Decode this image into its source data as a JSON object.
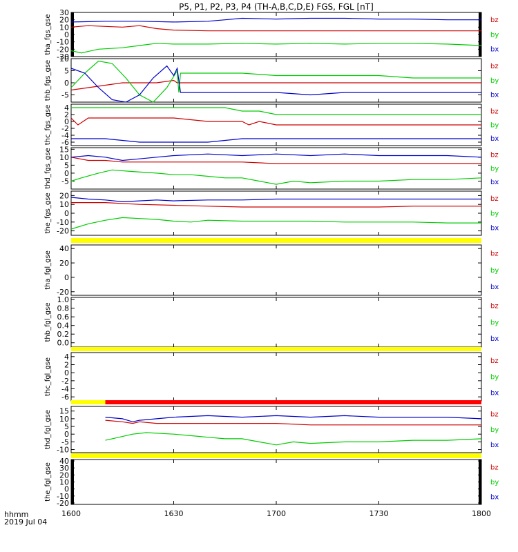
{
  "title": "P5, P1, P2, P3, P4 (TH-A,B,C,D,E) FGS, FGL [nT]",
  "colors": {
    "bz": "#cc0000",
    "by": "#00cc00",
    "bx": "#0000cc",
    "bar_yellow": "#ffff00",
    "bar_red": "#ff0000",
    "edge": "#000000"
  },
  "legend": [
    "bz",
    "by",
    "bx"
  ],
  "x_axis": {
    "ticks": [
      "1600",
      "1630",
      "1700",
      "1730",
      "1800"
    ],
    "corner_label": "hhmm",
    "date_label": "2019 Jul 04"
  },
  "chart_data": [
    {
      "type": "line",
      "ylabel": "tha_fgs_gse",
      "ylim": [
        -30,
        30
      ],
      "yticks": [
        -30,
        -20,
        -10,
        0,
        10,
        20,
        30
      ],
      "x_range": [
        "16:00",
        "18:00"
      ],
      "series": [
        {
          "name": "bz",
          "x": [
            0,
            5,
            10,
            15,
            20,
            25,
            30,
            40,
            50,
            60,
            70,
            80,
            90,
            100,
            110,
            120
          ],
          "y": [
            10,
            12,
            11,
            10,
            12,
            8,
            6,
            5,
            5,
            5,
            5,
            5,
            5,
            5,
            5,
            5
          ]
        },
        {
          "name": "by",
          "x": [
            0,
            3,
            8,
            15,
            20,
            25,
            30,
            40,
            50,
            60,
            70,
            80,
            90,
            100,
            110,
            120
          ],
          "y": [
            -22,
            -25,
            -20,
            -18,
            -15,
            -12,
            -13,
            -13,
            -12,
            -13,
            -12,
            -13,
            -12,
            -12,
            -13,
            -15
          ]
        },
        {
          "name": "bx",
          "x": [
            0,
            10,
            20,
            30,
            40,
            45,
            50,
            60,
            70,
            80,
            90,
            100,
            110,
            120
          ],
          "y": [
            17,
            18,
            18,
            17,
            18,
            20,
            22,
            21,
            22,
            22,
            21,
            21,
            20,
            20
          ]
        }
      ]
    },
    {
      "type": "line",
      "ylabel": "thb_fgs_gse",
      "ylim": [
        -8,
        10
      ],
      "yticks": [
        -5,
        0,
        5,
        10
      ],
      "series": [
        {
          "name": "bz",
          "x": [
            0,
            5,
            10,
            15,
            20,
            25,
            30,
            31,
            40,
            50,
            60,
            70,
            80,
            90,
            100,
            110,
            120
          ],
          "y": [
            -3,
            -2,
            -1,
            0,
            0,
            0,
            1,
            0,
            0,
            0,
            0,
            0,
            0,
            0,
            0,
            0,
            0
          ]
        },
        {
          "name": "by",
          "x": [
            0,
            4,
            8,
            12,
            16,
            20,
            24,
            28,
            31,
            31.5,
            32,
            40,
            50,
            60,
            70,
            80,
            90,
            100,
            110,
            120
          ],
          "y": [
            -2,
            4,
            9,
            8,
            2,
            -5,
            -8,
            -2,
            5,
            -4,
            4,
            4,
            4,
            3,
            3,
            3,
            3,
            2,
            2,
            2
          ]
        },
        {
          "name": "bx",
          "x": [
            0,
            4,
            8,
            12,
            16,
            20,
            24,
            28,
            30,
            31,
            32,
            40,
            50,
            60,
            70,
            80,
            90,
            100,
            110,
            120
          ],
          "y": [
            6,
            4,
            -2,
            -7,
            -9,
            -5,
            2,
            7,
            3,
            6,
            -4,
            -4,
            -4,
            -4,
            -5,
            -4,
            -4,
            -4,
            -4,
            -4
          ]
        }
      ]
    },
    {
      "type": "line",
      "ylabel": "thc_fgs_gse",
      "ylim": [
        -7,
        5
      ],
      "yticks": [
        -6,
        -4,
        -2,
        0,
        2,
        4
      ],
      "series": [
        {
          "name": "bz",
          "x": [
            0,
            2,
            5,
            10,
            20,
            30,
            40,
            45,
            50,
            52,
            55,
            60,
            70,
            80,
            90,
            100,
            110,
            120
          ],
          "y": [
            1,
            -1,
            1,
            1,
            1,
            1,
            0,
            0,
            0,
            -1,
            0,
            -1,
            -1,
            -1,
            -1,
            -1,
            -1,
            -1
          ]
        },
        {
          "name": "by",
          "x": [
            0,
            10,
            20,
            30,
            40,
            45,
            50,
            55,
            60,
            70,
            80,
            90,
            100,
            110,
            120
          ],
          "y": [
            4,
            4,
            4,
            4,
            4,
            4,
            3,
            3,
            2,
            2,
            2,
            2,
            2,
            2,
            2
          ]
        },
        {
          "name": "bx",
          "x": [
            0,
            10,
            20,
            30,
            40,
            50,
            60,
            70,
            80,
            90,
            100,
            110,
            120
          ],
          "y": [
            -5,
            -5,
            -6,
            -6,
            -6,
            -5,
            -5,
            -5,
            -5,
            -5,
            -5,
            -5,
            -5
          ]
        }
      ]
    },
    {
      "type": "line",
      "ylabel": "thd_fgs_gse",
      "ylim": [
        -10,
        16
      ],
      "yticks": [
        -5,
        0,
        5,
        10,
        15
      ],
      "series": [
        {
          "name": "bz",
          "x": [
            0,
            5,
            10,
            15,
            20,
            30,
            40,
            50,
            60,
            70,
            80,
            90,
            100,
            110,
            120
          ],
          "y": [
            10,
            8,
            8,
            7,
            7,
            7,
            7,
            7,
            6,
            6,
            6,
            6,
            6,
            6,
            6
          ]
        },
        {
          "name": "by",
          "x": [
            0,
            3,
            8,
            12,
            18,
            25,
            30,
            35,
            40,
            45,
            50,
            55,
            60,
            65,
            70,
            80,
            90,
            100,
            110,
            120
          ],
          "y": [
            -5,
            -3,
            0,
            2,
            1,
            0,
            -1,
            -1,
            -2,
            -3,
            -3,
            -5,
            -7,
            -5,
            -6,
            -5,
            -5,
            -4,
            -4,
            -3
          ]
        },
        {
          "name": "bx",
          "x": [
            0,
            5,
            10,
            15,
            20,
            25,
            30,
            40,
            50,
            60,
            70,
            80,
            90,
            100,
            110,
            120
          ],
          "y": [
            10,
            11,
            10,
            8,
            9,
            10,
            11,
            12,
            11,
            12,
            11,
            12,
            11,
            11,
            11,
            10
          ]
        }
      ]
    },
    {
      "type": "line",
      "ylabel": "the_fgs_gse",
      "ylim": [
        -25,
        25
      ],
      "yticks": [
        -20,
        -10,
        0,
        10,
        20
      ],
      "series": [
        {
          "name": "bz",
          "x": [
            0,
            10,
            20,
            30,
            40,
            50,
            60,
            70,
            80,
            90,
            100,
            110,
            120
          ],
          "y": [
            12,
            12,
            10,
            9,
            8,
            7,
            7,
            7,
            7,
            7,
            8,
            8,
            8
          ]
        },
        {
          "name": "by",
          "x": [
            0,
            5,
            10,
            15,
            20,
            25,
            30,
            35,
            40,
            50,
            60,
            70,
            80,
            90,
            100,
            110,
            120
          ],
          "y": [
            -18,
            -12,
            -8,
            -5,
            -6,
            -7,
            -9,
            -10,
            -8,
            -9,
            -9,
            -9,
            -10,
            -10,
            -10,
            -11,
            -11
          ]
        },
        {
          "name": "bx",
          "x": [
            0,
            5,
            10,
            15,
            20,
            25,
            30,
            40,
            50,
            60,
            70,
            80,
            90,
            100,
            110,
            120
          ],
          "y": [
            18,
            16,
            15,
            13,
            14,
            15,
            14,
            15,
            15,
            16,
            16,
            16,
            16,
            16,
            16,
            16
          ]
        }
      ]
    },
    {
      "type": "line",
      "ylabel": "tha_fgl_gse",
      "ylim": [
        -25,
        45
      ],
      "yticks": [
        -20,
        0,
        20,
        40
      ],
      "series": []
    },
    {
      "type": "line",
      "ylabel": "thb_fgl_gse",
      "ylim": [
        -0.1,
        1.05
      ],
      "yticks": [
        0.0,
        0.2,
        0.4,
        0.6,
        0.8,
        1.0
      ],
      "series": []
    },
    {
      "type": "line",
      "ylabel": "thc_fgl_gse",
      "ylim": [
        -7,
        5
      ],
      "yticks": [
        -6,
        -4,
        -2,
        0,
        2,
        4
      ],
      "series": []
    },
    {
      "type": "line",
      "ylabel": "thd_fgl_gse",
      "ylim": [
        -12,
        18
      ],
      "yticks": [
        -10,
        -5,
        0,
        5,
        10,
        15
      ],
      "series": [
        {
          "name": "bz",
          "x": [
            10,
            15,
            18,
            20,
            25,
            30,
            40,
            50,
            60,
            70,
            80,
            90,
            100,
            110,
            120
          ],
          "y": [
            9,
            8,
            7,
            8,
            7,
            7,
            7,
            7,
            7,
            6,
            6,
            6,
            6,
            6,
            6
          ]
        },
        {
          "name": "by",
          "x": [
            10,
            12,
            18,
            22,
            30,
            35,
            40,
            45,
            50,
            55,
            60,
            65,
            70,
            80,
            90,
            100,
            110,
            120
          ],
          "y": [
            -4,
            -3,
            0,
            1,
            0,
            -1,
            -2,
            -3,
            -3,
            -5,
            -7,
            -5,
            -6,
            -5,
            -5,
            -4,
            -4,
            -3
          ]
        },
        {
          "name": "bx",
          "x": [
            10,
            15,
            18,
            20,
            25,
            30,
            40,
            50,
            60,
            70,
            80,
            90,
            100,
            110,
            120
          ],
          "y": [
            11,
            10,
            8,
            9,
            10,
            11,
            12,
            11,
            12,
            11,
            12,
            11,
            11,
            11,
            10
          ]
        }
      ]
    },
    {
      "type": "line",
      "ylabel": "the_fgl_gse",
      "ylim": [
        -22,
        42
      ],
      "yticks": [
        -20,
        -10,
        0,
        10,
        20,
        30,
        40
      ],
      "series": []
    }
  ],
  "status_bars": [
    {
      "color": "yellow",
      "segments": [
        [
          0,
          120
        ]
      ]
    },
    {
      "color": "yellow",
      "segments": [
        [
          0,
          120
        ]
      ]
    },
    {
      "color": "yellow",
      "segments": [
        [
          0,
          10
        ]
      ],
      "red": [
        [
          10,
          120
        ]
      ]
    },
    {
      "color": "yellow",
      "segments": [
        [
          0,
          120
        ]
      ]
    }
  ]
}
